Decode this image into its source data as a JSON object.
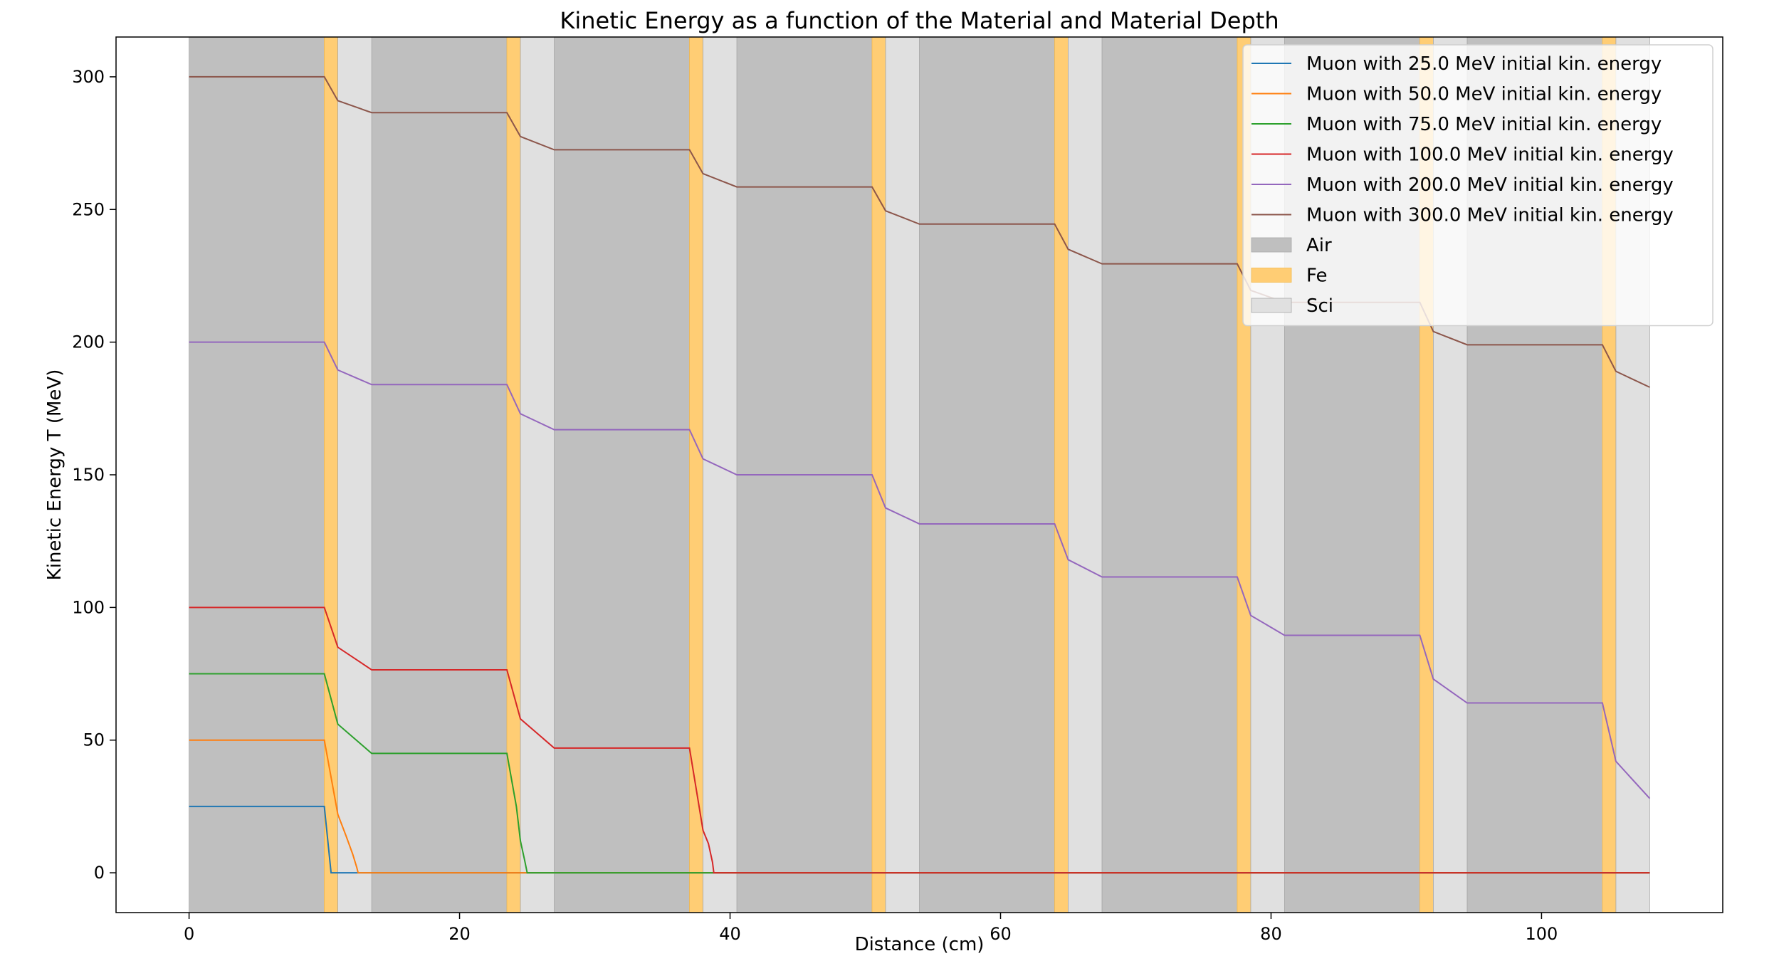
{
  "chart_data": {
    "type": "line",
    "title": "Kinetic Energy as a function of the Material and Material Depth",
    "xlabel": "Distance (cm)",
    "ylabel": "Kinetic Energy T (MeV)",
    "xlim": [
      -5.4,
      113.4
    ],
    "ylim": [
      -15,
      315
    ],
    "xticks": [
      0,
      20,
      40,
      60,
      80,
      100
    ],
    "yticks": [
      0,
      50,
      100,
      150,
      200,
      250,
      300
    ],
    "grid": false,
    "legend_position": "top-right",
    "regions": [
      {
        "name": "Air",
        "color": "#bfbfbf",
        "segments": [
          [
            0,
            10
          ],
          [
            13.5,
            23.5
          ],
          [
            27,
            37
          ],
          [
            40.5,
            50.5
          ],
          [
            54,
            64
          ],
          [
            67.5,
            77.5
          ],
          [
            81,
            91
          ],
          [
            94.5,
            104.5
          ]
        ]
      },
      {
        "name": "Fe",
        "color": "#ffcd74",
        "segments": [
          [
            10,
            11
          ],
          [
            23.5,
            24.5
          ],
          [
            37,
            38
          ],
          [
            50.5,
            51.5
          ],
          [
            64,
            65
          ],
          [
            77.5,
            78.5
          ],
          [
            91,
            92
          ],
          [
            104.5,
            105.5
          ]
        ]
      },
      {
        "name": "Sci",
        "color": "#e0e0e0",
        "segments": [
          [
            11,
            13.5
          ],
          [
            24.5,
            27
          ],
          [
            38,
            40.5
          ],
          [
            51.5,
            54
          ],
          [
            65,
            67.5
          ],
          [
            78.5,
            81
          ],
          [
            92,
            94.5
          ],
          [
            105.5,
            108
          ]
        ]
      }
    ],
    "series": [
      {
        "name": "Muon with 25.0 MeV initial kin. energy",
        "color": "#1f77b4",
        "x": [
          0,
          10,
          10.2,
          10.4,
          10.5,
          108
        ],
        "y": [
          25,
          25,
          15,
          5,
          0,
          0
        ]
      },
      {
        "name": "Muon with 50.0 MeV initial kin. energy",
        "color": "#ff7f0e",
        "x": [
          0,
          10,
          11,
          11.6,
          12.1,
          12.4,
          12.5,
          108
        ],
        "y": [
          50,
          50,
          22,
          14,
          7,
          2,
          0,
          0
        ]
      },
      {
        "name": "Muon with 75.0 MeV initial kin. energy",
        "color": "#2ca02c",
        "x": [
          0,
          10,
          11,
          13.5,
          23.5,
          24.2,
          24.5,
          24.8,
          25,
          108
        ],
        "y": [
          75,
          75,
          56,
          45,
          45,
          25,
          12,
          5,
          0,
          0
        ]
      },
      {
        "name": "Muon with 100.0 MeV initial kin. energy",
        "color": "#d62728",
        "x": [
          0,
          10,
          11,
          13.5,
          23.5,
          24.5,
          27,
          37,
          38,
          38.4,
          38.7,
          38.8,
          108
        ],
        "y": [
          100,
          100,
          85,
          76.5,
          76.5,
          58,
          47,
          47,
          16,
          11,
          4,
          0,
          0
        ]
      },
      {
        "name": "Muon with 200.0 MeV initial kin. energy",
        "color": "#9467bd",
        "x": [
          0,
          10,
          11,
          13.5,
          23.5,
          24.5,
          27,
          37,
          38,
          40.5,
          50.5,
          51.5,
          54,
          64,
          65,
          67.5,
          77.5,
          78.5,
          81,
          91,
          92,
          94.5,
          104.5,
          105.5,
          108
        ],
        "y": [
          200,
          200,
          189.5,
          184,
          184,
          173,
          167,
          167,
          156,
          150,
          150,
          137.5,
          131.5,
          131.5,
          118,
          111.5,
          111.5,
          97,
          89.5,
          89.5,
          73,
          64,
          64,
          42,
          28
        ]
      },
      {
        "name": "Muon with 300.0 MeV initial kin. energy",
        "color": "#8c564b",
        "x": [
          0,
          10,
          11,
          13.5,
          23.5,
          24.5,
          27,
          37,
          38,
          40.5,
          50.5,
          51.5,
          54,
          64,
          65,
          67.5,
          77.5,
          78.5,
          81,
          91,
          92,
          94.5,
          104.5,
          105.5,
          108
        ],
        "y": [
          300,
          300,
          291,
          286.5,
          286.5,
          277.5,
          272.5,
          272.5,
          263.5,
          258.5,
          258.5,
          249.5,
          244.5,
          244.5,
          235,
          229.5,
          229.5,
          219.5,
          215,
          215,
          204,
          199,
          199,
          189,
          183
        ]
      }
    ]
  }
}
